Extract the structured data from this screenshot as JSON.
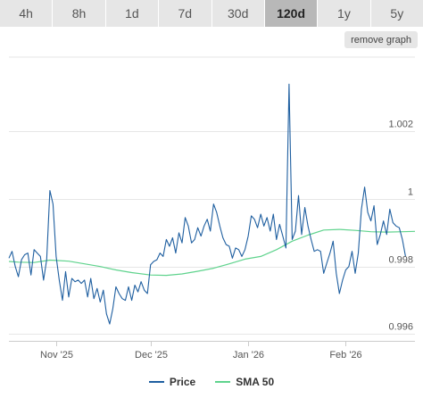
{
  "range_tabs": [
    {
      "label": "4h",
      "active": false
    },
    {
      "label": "8h",
      "active": false
    },
    {
      "label": "1d",
      "active": false
    },
    {
      "label": "7d",
      "active": false
    },
    {
      "label": "30d",
      "active": false
    },
    {
      "label": "120d",
      "active": true
    },
    {
      "label": "1y",
      "active": false
    },
    {
      "label": "5y",
      "active": false
    }
  ],
  "remove_graph_label": "remove graph",
  "colors": {
    "price": "#1f5fa0",
    "sma": "#5fd38d",
    "grid": "#e6e6e6"
  },
  "chart_data": {
    "type": "line",
    "title": "",
    "xlabel": "",
    "ylabel": "",
    "x_range": [
      "2025-10-17",
      "2026-02-23"
    ],
    "ylim": [
      0.9958,
      1.0042
    ],
    "y_ticks": [
      0.996,
      0.998,
      1,
      1.002
    ],
    "y_tick_labels": [
      "0.996",
      "0.998",
      "1",
      "1.002"
    ],
    "x_ticks": [
      {
        "date": "2025-11-01",
        "label": "Nov '25"
      },
      {
        "date": "2025-12-01",
        "label": "Dec '25"
      },
      {
        "date": "2026-01-01",
        "label": "Jan '26"
      },
      {
        "date": "2026-02-01",
        "label": "Feb '26"
      }
    ],
    "legend": {
      "position": "bottom",
      "entries": [
        "Price",
        "SMA 50"
      ]
    },
    "series": [
      {
        "name": "Price",
        "points": [
          [
            "2025-10-17",
            0.99825
          ],
          [
            "2025-10-18",
            0.99845
          ],
          [
            "2025-10-19",
            0.998
          ],
          [
            "2025-10-20",
            0.9977
          ],
          [
            "2025-10-21",
            0.9982
          ],
          [
            "2025-10-22",
            0.99835
          ],
          [
            "2025-10-23",
            0.9984
          ],
          [
            "2025-10-24",
            0.99775
          ],
          [
            "2025-10-25",
            0.9985
          ],
          [
            "2025-10-26",
            0.9984
          ],
          [
            "2025-10-27",
            0.9983
          ],
          [
            "2025-10-28",
            0.9976
          ],
          [
            "2025-10-29",
            0.9982
          ],
          [
            "2025-10-30",
            1.00025
          ],
          [
            "2025-10-31",
            0.99985
          ],
          [
            "2025-11-01",
            0.9983
          ],
          [
            "2025-11-02",
            0.9976
          ],
          [
            "2025-11-03",
            0.997
          ],
          [
            "2025-11-04",
            0.99785
          ],
          [
            "2025-11-05",
            0.9971
          ],
          [
            "2025-11-06",
            0.99765
          ],
          [
            "2025-11-07",
            0.99755
          ],
          [
            "2025-11-08",
            0.9976
          ],
          [
            "2025-11-09",
            0.9975
          ],
          [
            "2025-11-10",
            0.9976
          ],
          [
            "2025-11-11",
            0.9971
          ],
          [
            "2025-11-12",
            0.99765
          ],
          [
            "2025-11-13",
            0.99705
          ],
          [
            "2025-11-14",
            0.99735
          ],
          [
            "2025-11-15",
            0.99695
          ],
          [
            "2025-11-16",
            0.9973
          ],
          [
            "2025-11-17",
            0.9966
          ],
          [
            "2025-11-18",
            0.9963
          ],
          [
            "2025-11-19",
            0.99675
          ],
          [
            "2025-11-20",
            0.9974
          ],
          [
            "2025-11-21",
            0.9972
          ],
          [
            "2025-11-22",
            0.99705
          ],
          [
            "2025-11-23",
            0.997
          ],
          [
            "2025-11-24",
            0.9974
          ],
          [
            "2025-11-25",
            0.997
          ],
          [
            "2025-11-26",
            0.99745
          ],
          [
            "2025-11-27",
            0.99725
          ],
          [
            "2025-11-28",
            0.99755
          ],
          [
            "2025-11-29",
            0.9973
          ],
          [
            "2025-11-30",
            0.9972
          ],
          [
            "2025-12-01",
            0.99805
          ],
          [
            "2025-12-02",
            0.99815
          ],
          [
            "2025-12-03",
            0.9982
          ],
          [
            "2025-12-04",
            0.9984
          ],
          [
            "2025-12-05",
            0.9983
          ],
          [
            "2025-12-06",
            0.9988
          ],
          [
            "2025-12-07",
            0.9986
          ],
          [
            "2025-12-08",
            0.99885
          ],
          [
            "2025-12-09",
            0.9984
          ],
          [
            "2025-12-10",
            0.999
          ],
          [
            "2025-12-11",
            0.9987
          ],
          [
            "2025-12-12",
            0.99945
          ],
          [
            "2025-12-13",
            0.9992
          ],
          [
            "2025-12-14",
            0.9987
          ],
          [
            "2025-12-15",
            0.9988
          ],
          [
            "2025-12-16",
            0.99915
          ],
          [
            "2025-12-17",
            0.9989
          ],
          [
            "2025-12-18",
            0.9992
          ],
          [
            "2025-12-19",
            0.9994
          ],
          [
            "2025-12-20",
            0.99905
          ],
          [
            "2025-12-21",
            0.99985
          ],
          [
            "2025-12-22",
            0.9996
          ],
          [
            "2025-12-23",
            0.9992
          ],
          [
            "2025-12-24",
            0.99885
          ],
          [
            "2025-12-25",
            0.99865
          ],
          [
            "2025-12-26",
            0.9986
          ],
          [
            "2025-12-27",
            0.99825
          ],
          [
            "2025-12-28",
            0.99855
          ],
          [
            "2025-12-29",
            0.9985
          ],
          [
            "2025-12-30",
            0.9983
          ],
          [
            "2025-12-31",
            0.9985
          ],
          [
            "2026-01-01",
            0.9989
          ],
          [
            "2026-01-02",
            0.9995
          ],
          [
            "2026-01-03",
            0.9994
          ],
          [
            "2026-01-04",
            0.99915
          ],
          [
            "2026-01-05",
            0.99955
          ],
          [
            "2026-01-06",
            0.9992
          ],
          [
            "2026-01-07",
            0.99945
          ],
          [
            "2026-01-08",
            0.99905
          ],
          [
            "2026-01-09",
            0.99955
          ],
          [
            "2026-01-10",
            0.9988
          ],
          [
            "2026-01-11",
            0.99925
          ],
          [
            "2026-01-12",
            0.9989
          ],
          [
            "2026-01-13",
            0.99855
          ],
          [
            "2026-01-14",
            1.0034
          ],
          [
            "2026-01-15",
            0.9988
          ],
          [
            "2026-01-16",
            0.99905
          ],
          [
            "2026-01-17",
            1.0001
          ],
          [
            "2026-01-18",
            0.99895
          ],
          [
            "2026-01-19",
            0.99975
          ],
          [
            "2026-01-20",
            0.9992
          ],
          [
            "2026-01-21",
            0.9988
          ],
          [
            "2026-01-22",
            0.99845
          ],
          [
            "2026-01-23",
            0.9985
          ],
          [
            "2026-01-24",
            0.99845
          ],
          [
            "2026-01-25",
            0.9978
          ],
          [
            "2026-01-26",
            0.9981
          ],
          [
            "2026-01-27",
            0.9984
          ],
          [
            "2026-01-28",
            0.99875
          ],
          [
            "2026-01-29",
            0.9978
          ],
          [
            "2026-01-30",
            0.9972
          ],
          [
            "2026-01-31",
            0.9976
          ],
          [
            "2026-02-01",
            0.9979
          ],
          [
            "2026-02-02",
            0.998
          ],
          [
            "2026-02-03",
            0.99845
          ],
          [
            "2026-02-04",
            0.9978
          ],
          [
            "2026-02-05",
            0.9984
          ],
          [
            "2026-02-06",
            0.9997
          ],
          [
            "2026-02-07",
            1.00035
          ],
          [
            "2026-02-08",
            0.9996
          ],
          [
            "2026-02-09",
            0.99935
          ],
          [
            "2026-02-10",
            0.9998
          ],
          [
            "2026-02-11",
            0.99865
          ],
          [
            "2026-02-12",
            0.99895
          ],
          [
            "2026-02-13",
            0.99935
          ],
          [
            "2026-02-14",
            0.99895
          ],
          [
            "2026-02-15",
            0.9997
          ],
          [
            "2026-02-16",
            0.9993
          ],
          [
            "2026-02-17",
            0.9992
          ],
          [
            "2026-02-18",
            0.99915
          ],
          [
            "2026-02-19",
            0.9988
          ],
          [
            "2026-02-20",
            0.9983
          ]
        ]
      },
      {
        "name": "SMA 50",
        "points": [
          [
            "2025-10-17",
            0.99815
          ],
          [
            "2025-10-20",
            0.99813
          ],
          [
            "2025-10-25",
            0.99812
          ],
          [
            "2025-10-30",
            0.99819
          ],
          [
            "2025-11-01",
            0.99818
          ],
          [
            "2025-11-05",
            0.99816
          ],
          [
            "2025-11-10",
            0.99808
          ],
          [
            "2025-11-15",
            0.998
          ],
          [
            "2025-11-20",
            0.9979
          ],
          [
            "2025-11-25",
            0.99782
          ],
          [
            "2025-12-01",
            0.99775
          ],
          [
            "2025-12-06",
            0.99774
          ],
          [
            "2025-12-11",
            0.99778
          ],
          [
            "2025-12-16",
            0.99786
          ],
          [
            "2025-12-21",
            0.99795
          ],
          [
            "2025-12-26",
            0.99808
          ],
          [
            "2025-12-31",
            0.99822
          ],
          [
            "2026-01-05",
            0.9983
          ],
          [
            "2026-01-10",
            0.9985
          ],
          [
            "2026-01-15",
            0.99875
          ],
          [
            "2026-01-20",
            0.99893
          ],
          [
            "2026-01-25",
            0.99908
          ],
          [
            "2026-01-30",
            0.9991
          ],
          [
            "2026-02-04",
            0.99907
          ],
          [
            "2026-02-09",
            0.99903
          ],
          [
            "2026-02-14",
            0.99902
          ],
          [
            "2026-02-19",
            0.99903
          ],
          [
            "2026-02-23",
            0.99904
          ]
        ]
      }
    ]
  }
}
